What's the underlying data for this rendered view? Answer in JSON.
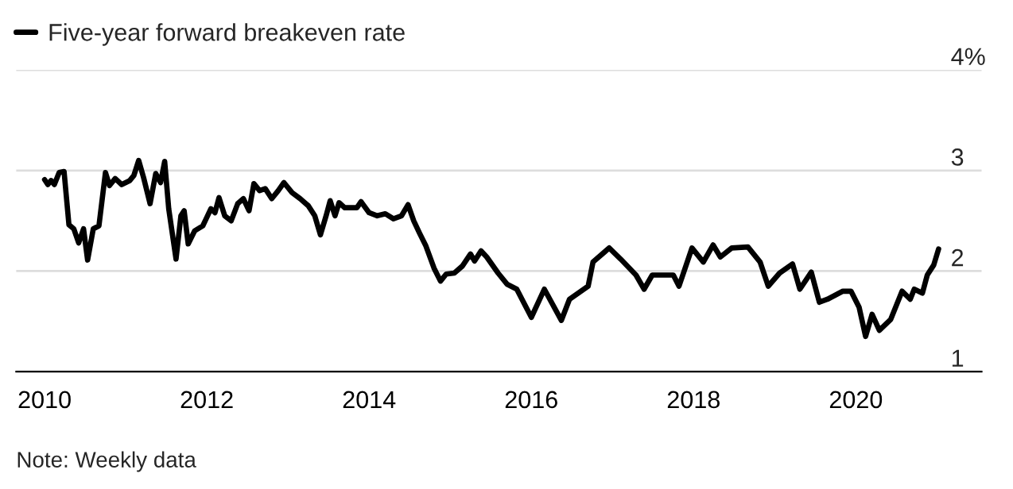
{
  "chart_data": {
    "type": "line",
    "series": [
      {
        "name": "Five-year forward breakeven rate",
        "color": "#000000",
        "x": [
          2010.0,
          2010.04,
          2010.08,
          2010.12,
          2010.18,
          2010.24,
          2010.3,
          2010.36,
          2010.42,
          2010.48,
          2010.53,
          2010.6,
          2010.67,
          2010.75,
          2010.8,
          2010.87,
          2010.95,
          2011.05,
          2011.1,
          2011.16,
          2011.22,
          2011.3,
          2011.37,
          2011.43,
          2011.48,
          2011.53,
          2011.62,
          2011.68,
          2011.72,
          2011.77,
          2011.85,
          2011.95,
          2012.05,
          2012.1,
          2012.15,
          2012.22,
          2012.3,
          2012.38,
          2012.45,
          2012.52,
          2012.58,
          2012.65,
          2012.72,
          2012.8,
          2012.88,
          2012.95,
          2013.05,
          2013.15,
          2013.25,
          2013.33,
          2013.4,
          2013.47,
          2013.52,
          2013.58,
          2013.63,
          2013.7,
          2013.85,
          2013.9,
          2014.0,
          2014.1,
          2014.2,
          2014.3,
          2014.4,
          2014.48,
          2014.55,
          2014.62,
          2014.7,
          2014.8,
          2014.88,
          2014.95,
          2015.05,
          2015.15,
          2015.25,
          2015.3,
          2015.38,
          2015.45,
          2015.59,
          2015.7,
          2015.82,
          2016.0,
          2016.16,
          2016.37,
          2016.47,
          2016.7,
          2016.76,
          2016.96,
          2017.1,
          2017.29,
          2017.39,
          2017.49,
          2017.75,
          2017.82,
          2017.98,
          2018.12,
          2018.24,
          2018.33,
          2018.47,
          2018.67,
          2018.82,
          2018.92,
          2019.06,
          2019.22,
          2019.31,
          2019.45,
          2019.55,
          2019.65,
          2019.84,
          2019.94,
          2020.04,
          2020.12,
          2020.2,
          2020.29,
          2020.43,
          2020.57,
          2020.67,
          2020.72,
          2020.82,
          2020.88,
          2020.96,
          2021.02
        ],
        "values": [
          2.91,
          2.86,
          2.9,
          2.86,
          2.98,
          2.99,
          2.46,
          2.42,
          2.28,
          2.42,
          2.11,
          2.42,
          2.45,
          2.98,
          2.85,
          2.92,
          2.86,
          2.9,
          2.95,
          3.1,
          2.93,
          2.67,
          2.97,
          2.88,
          3.09,
          2.62,
          2.12,
          2.55,
          2.6,
          2.27,
          2.4,
          2.45,
          2.62,
          2.58,
          2.73,
          2.55,
          2.5,
          2.67,
          2.72,
          2.6,
          2.87,
          2.8,
          2.82,
          2.72,
          2.8,
          2.88,
          2.78,
          2.72,
          2.65,
          2.55,
          2.36,
          2.55,
          2.7,
          2.55,
          2.68,
          2.63,
          2.63,
          2.69,
          2.58,
          2.55,
          2.57,
          2.52,
          2.55,
          2.66,
          2.5,
          2.38,
          2.25,
          2.03,
          1.9,
          1.97,
          1.98,
          2.05,
          2.17,
          2.1,
          2.2,
          2.14,
          1.98,
          1.87,
          1.82,
          1.54,
          1.82,
          1.51,
          1.72,
          1.85,
          2.09,
          2.23,
          2.12,
          1.96,
          1.82,
          1.96,
          1.96,
          1.85,
          2.23,
          2.09,
          2.26,
          2.14,
          2.23,
          2.24,
          2.09,
          1.85,
          1.98,
          2.07,
          1.82,
          1.99,
          1.69,
          1.72,
          1.8,
          1.8,
          1.64,
          1.35,
          1.57,
          1.41,
          1.52,
          1.8,
          1.72,
          1.82,
          1.78,
          1.96,
          2.06,
          2.22
        ]
      }
    ],
    "xlim": [
      2009.65,
      2021.55
    ],
    "xticks": [
      2010,
      2012,
      2014,
      2016,
      2018,
      2020
    ],
    "ylim": [
      1,
      4
    ],
    "yticks": [
      1,
      2,
      3,
      {
        "value": 4,
        "label": "4%"
      }
    ],
    "grid": "y",
    "legend": "top left",
    "annotations": [
      "Note: Weekly data"
    ]
  }
}
